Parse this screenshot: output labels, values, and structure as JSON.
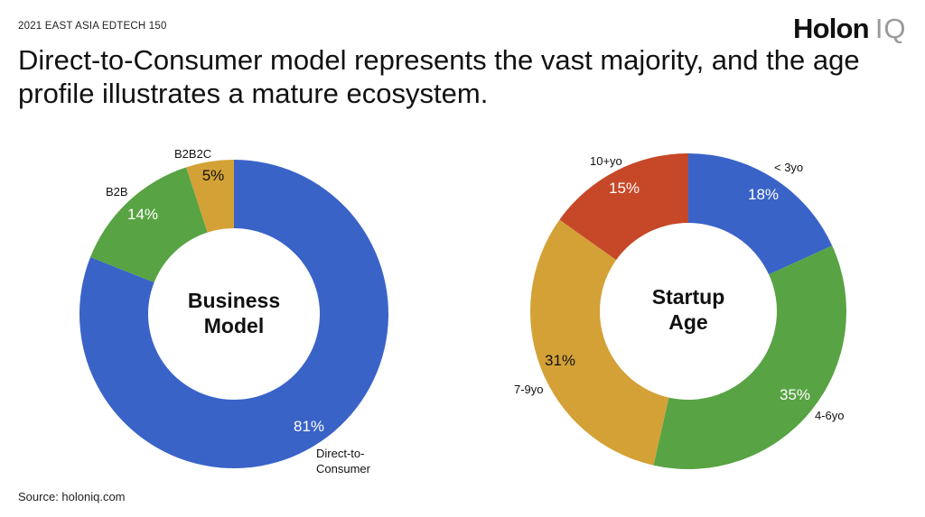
{
  "header": {
    "eyebrow": "2021 EAST ASIA EDTECH 150",
    "logo_word": "Holon",
    "logo_mark": "IQ",
    "title": "Direct-to-Consumer model represents the vast majority, and the age profile illustrates a mature ecosystem."
  },
  "footer": {
    "source": "Source: holoniq.com"
  },
  "chart_data": [
    {
      "type": "pie",
      "variant": "donut",
      "title": "Business Model",
      "center_lines": [
        "Business",
        "Model"
      ],
      "unit": "%",
      "slices": [
        {
          "key": "d2c",
          "name_lines": [
            "Direct-to-",
            "Consumer"
          ],
          "value": 81,
          "label": "81%",
          "color": "#3a63c8"
        },
        {
          "key": "b2b",
          "name_lines": [
            "B2B"
          ],
          "value": 14,
          "label": "14%",
          "color": "#58a343"
        },
        {
          "key": "b2b2c",
          "name_lines": [
            "B2B2C"
          ],
          "value": 5,
          "label": "5%",
          "color": "#d4a137"
        }
      ]
    },
    {
      "type": "pie",
      "variant": "donut",
      "title": "Startup Age",
      "center_lines": [
        "Startup",
        "Age"
      ],
      "unit": "%",
      "slices": [
        {
          "key": "lt3",
          "name_lines": [
            "< 3yo"
          ],
          "value": 18,
          "label": "18%",
          "color": "#3a63c8"
        },
        {
          "key": "4to6",
          "name_lines": [
            "4-6yo"
          ],
          "value": 35,
          "label": "35%",
          "color": "#58a343"
        },
        {
          "key": "7to9",
          "name_lines": [
            "7-9yo"
          ],
          "value": 31,
          "label": "31%",
          "color": "#d4a137"
        },
        {
          "key": "10p",
          "name_lines": [
            "10+yo"
          ],
          "value": 15,
          "label": "15%",
          "color": "#c64828"
        }
      ]
    }
  ]
}
